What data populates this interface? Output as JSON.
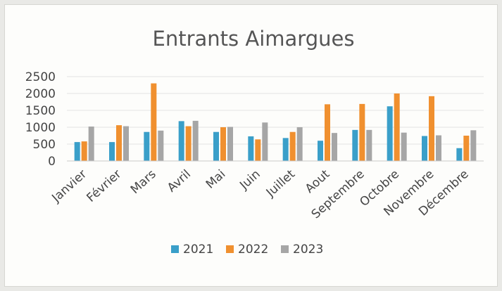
{
  "chart_data": {
    "type": "bar",
    "title": "Entrants Aimargues",
    "xlabel": "",
    "ylabel": "",
    "ylim": [
      0,
      2500
    ],
    "yticks": [
      0,
      500,
      1000,
      1500,
      2000,
      2500
    ],
    "grid": true,
    "legend_position": "bottom",
    "categories": [
      "Janvier",
      "Février",
      "Mars",
      "Avril",
      "Mai",
      "Juin",
      "Juillet",
      "Aout",
      "Septembre",
      "Octobre",
      "Novembre",
      "Décembre"
    ],
    "series": [
      {
        "name": "2021",
        "color": "#3a9fc9",
        "values": [
          560,
          560,
          860,
          1180,
          860,
          730,
          680,
          600,
          920,
          1620,
          740,
          380
        ]
      },
      {
        "name": "2022",
        "color": "#f0902f",
        "values": [
          580,
          1060,
          2300,
          1030,
          1000,
          640,
          860,
          1680,
          1690,
          2000,
          1920,
          750
        ]
      },
      {
        "name": "2023",
        "color": "#a6a6a6",
        "values": [
          1020,
          1030,
          900,
          1190,
          1010,
          1140,
          1000,
          830,
          920,
          840,
          760,
          910
        ]
      }
    ]
  }
}
